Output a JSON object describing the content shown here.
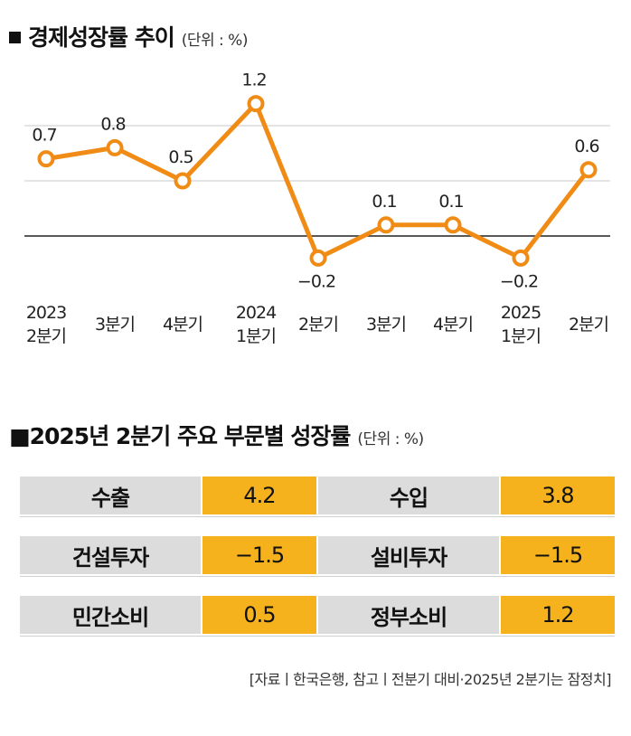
{
  "section1": {
    "title": "경제성장률 추이",
    "unit": "(단위 : %)"
  },
  "chart_data": {
    "type": "line",
    "title": "경제성장률 추이",
    "unit": "(단위 : %)",
    "categories": [
      [
        "2023",
        "2분기"
      ],
      [
        "3분기"
      ],
      [
        "4분기"
      ],
      [
        "2024",
        "1분기"
      ],
      [
        "2분기"
      ],
      [
        "3분기"
      ],
      [
        "4분기"
      ],
      [
        "2025",
        "1분기"
      ],
      [
        "2분기"
      ]
    ],
    "values": [
      0.7,
      0.8,
      0.5,
      1.2,
      -0.2,
      0.1,
      0.1,
      -0.2,
      0.6
    ],
    "value_labels": [
      "0.7",
      "0.8",
      "0.5",
      "1.2",
      "−0.2",
      "0.1",
      "0.1",
      "−0.2",
      "0.6"
    ],
    "ylim": [
      -0.4,
      1.6
    ],
    "gridlines": [
      0.5,
      1.0
    ],
    "baseline": 0,
    "grid": true,
    "line_color": "#f08c16",
    "marker_fill": "#ffffff"
  },
  "section2": {
    "title": "■2025년 2분기 주요 부문별 성장률",
    "unit": "(단위 : %)",
    "rows": [
      [
        {
          "label": "수출",
          "value": "4.2"
        },
        {
          "label": "수입",
          "value": "3.8"
        }
      ],
      [
        {
          "label": "건설투자",
          "value": "−1.5"
        },
        {
          "label": "설비투자",
          "value": "−1.5"
        }
      ],
      [
        {
          "label": "민간소비",
          "value": "0.5"
        },
        {
          "label": "정부소비",
          "value": "1.2"
        }
      ]
    ]
  },
  "footnote": "[자료ㅣ한국은행, 참고ㅣ전분기 대비·2025년 2분기는 잠정치]",
  "colors": {
    "accent": "#f5b21c",
    "label_bg": "#dcdcdc",
    "line": "#f08c16"
  }
}
